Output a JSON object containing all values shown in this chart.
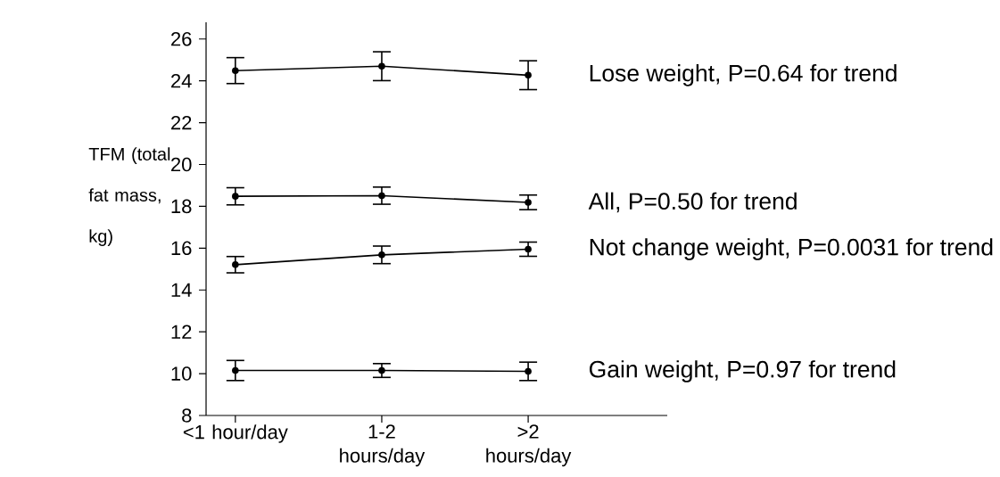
{
  "chart_data": {
    "type": "line",
    "ylabel": "TFM (total fat mass, kg)",
    "categories": [
      "<1 hour/day",
      "1-2 hours/day",
      ">2 hours/day"
    ],
    "series": [
      {
        "name": "Lose weight, P=0.64 for trend",
        "color": "#000000",
        "values": [
          24.49,
          24.7,
          24.27
        ],
        "errors": [
          0.62,
          0.69,
          0.69
        ]
      },
      {
        "name": "All, P=0.50 for trend",
        "color": "#000000",
        "values": [
          18.48,
          18.51,
          18.19
        ],
        "errors": [
          0.41,
          0.41,
          0.35
        ]
      },
      {
        "name": "Not change weight, P=0.0031 for trend",
        "color": "#000000",
        "values": [
          15.21,
          15.68,
          15.95
        ],
        "errors": [
          0.39,
          0.42,
          0.34
        ]
      },
      {
        "name": "Gain weight, P=0.97 for trend",
        "color": "#000000",
        "values": [
          10.15,
          10.15,
          10.11
        ],
        "errors": [
          0.48,
          0.33,
          0.44
        ]
      }
    ],
    "ylim": [
      8,
      26.8
    ],
    "yticks": [
      8,
      10,
      12,
      14,
      16,
      18,
      20,
      22,
      24,
      26
    ],
    "grid": false,
    "legend": false,
    "marker": "circle",
    "line_style": "solid"
  }
}
